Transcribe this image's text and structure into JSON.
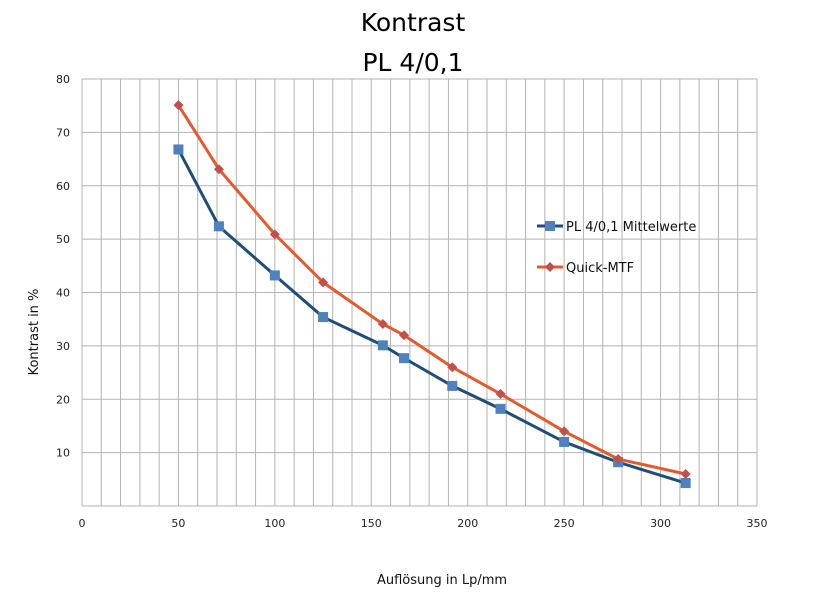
{
  "chart_data": {
    "type": "line",
    "title": [
      "Kontrast",
      "PL 4/0,1"
    ],
    "xlabel": "Auflösung in Lp/mm",
    "ylabel": "Kontrast in %",
    "xlim": [
      0,
      350
    ],
    "ylim": [
      0,
      80
    ],
    "x_ticks": [
      0,
      50,
      100,
      150,
      200,
      250,
      300,
      350
    ],
    "y_ticks": [
      10,
      20,
      30,
      40,
      50,
      60,
      70,
      80
    ],
    "x_grid_step": 10,
    "y_grid_step": 10,
    "grid": true,
    "legend_position": "right",
    "series": [
      {
        "name": "PL 4/0,1 Mittelwerte",
        "line_color": "#1F4E79",
        "marker_color": "#4F81BD",
        "marker": "square",
        "x": [
          50,
          71,
          100,
          125,
          156,
          167,
          192,
          217,
          250,
          278,
          313
        ],
        "y": [
          66.8,
          52.4,
          43.2,
          35.4,
          30.1,
          27.7,
          22.5,
          18.2,
          12.0,
          8.2,
          4.3
        ]
      },
      {
        "name": "Quick-MTF",
        "line_color": "#E8582A",
        "marker_color": "#C0504D",
        "marker": "diamond",
        "x": [
          50,
          71,
          100,
          125,
          156,
          167,
          192,
          217,
          250,
          278,
          313
        ],
        "y": [
          75.1,
          63.1,
          50.9,
          41.9,
          34.1,
          32.0,
          26.0,
          21.0,
          14.0,
          8.8,
          6.0
        ]
      }
    ]
  }
}
